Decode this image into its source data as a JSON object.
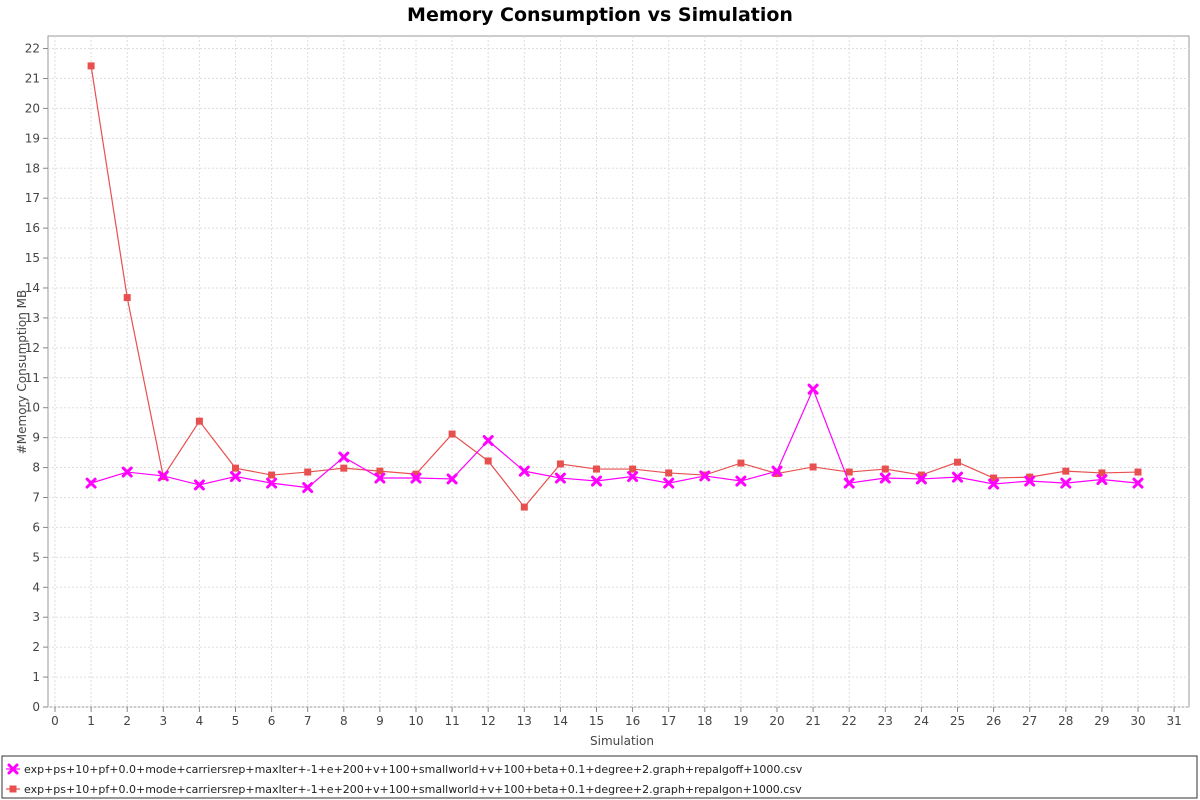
{
  "chart_data": {
    "type": "line",
    "title": "Memory Consumption vs Simulation",
    "xlabel": "Simulation",
    "ylabel": "#Memory Consumption MB",
    "xlim": [
      0,
      31
    ],
    "ylim": [
      0,
      22.5
    ],
    "x_ticks": [
      0,
      1,
      2,
      3,
      4,
      5,
      6,
      7,
      8,
      9,
      10,
      11,
      12,
      13,
      14,
      15,
      16,
      17,
      18,
      19,
      20,
      21,
      22,
      23,
      24,
      25,
      26,
      27,
      28,
      29,
      30,
      31
    ],
    "y_ticks": [
      0,
      1,
      2,
      3,
      4,
      5,
      6,
      7,
      8,
      9,
      10,
      11,
      12,
      13,
      14,
      15,
      16,
      17,
      18,
      19,
      20,
      21,
      22
    ],
    "grid": true,
    "legend_position": "bottom",
    "x": [
      1,
      2,
      3,
      4,
      5,
      6,
      7,
      8,
      9,
      10,
      11,
      12,
      13,
      14,
      15,
      16,
      17,
      18,
      19,
      20,
      21,
      22,
      23,
      24,
      25,
      26,
      27,
      28,
      29,
      30
    ],
    "series": [
      {
        "name": "exp+ps+10+pf+0.0+mode+carriersrep+maxIter+-1+e+200+v+100+smallworld+v+100+beta+0.1+degree+2.graph+repalgoff+1000.csv",
        "color": "#ff00ff",
        "marker": "x",
        "values": [
          7.48,
          7.85,
          7.72,
          7.42,
          7.7,
          7.48,
          7.33,
          8.35,
          7.65,
          7.65,
          7.62,
          8.9,
          7.88,
          7.65,
          7.55,
          7.7,
          7.48,
          7.72,
          7.55,
          7.88,
          10.62,
          7.48,
          7.65,
          7.62,
          7.68,
          7.45,
          7.55,
          7.48,
          7.6,
          7.48
        ]
      },
      {
        "name": "exp+ps+10+pf+0.0+mode+carriersrep+maxIter+-1+e+200+v+100+smallworld+v+100+beta+0.1+degree+2.graph+repalgon+1000.csv",
        "color": "#e85050",
        "marker": "square",
        "values": [
          21.42,
          13.68,
          7.7,
          9.55,
          7.98,
          7.75,
          7.85,
          7.98,
          7.88,
          7.78,
          9.12,
          8.22,
          6.68,
          8.12,
          7.95,
          7.95,
          7.82,
          7.75,
          8.15,
          7.8,
          8.02,
          7.85,
          7.95,
          7.75,
          8.18,
          7.65,
          7.68,
          7.88,
          7.82,
          7.85
        ]
      }
    ]
  }
}
